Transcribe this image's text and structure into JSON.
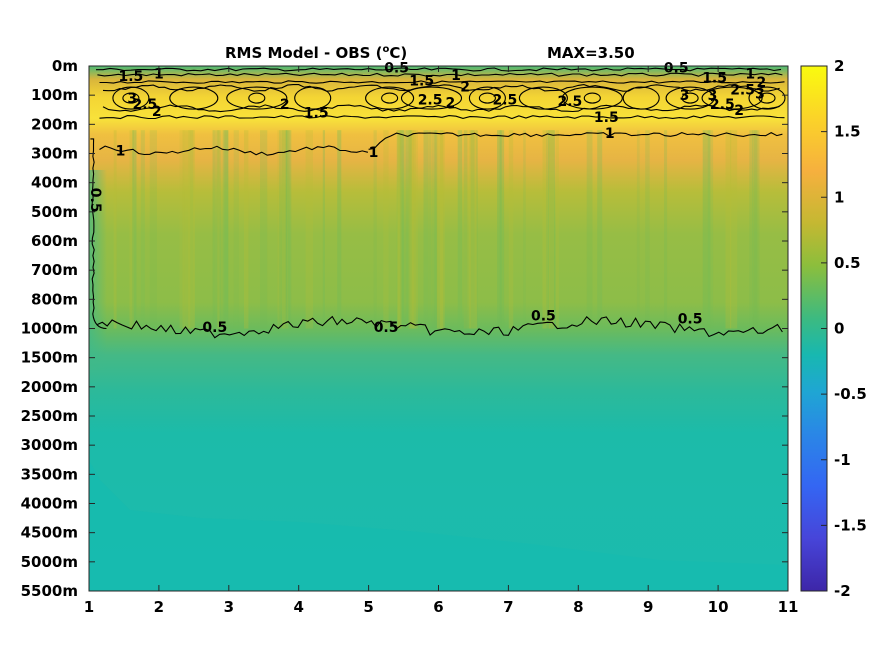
{
  "chart_data": {
    "type": "heatmap",
    "title": "RMS Model - OBS (",
    "title_degree": "o",
    "title_unit": "C)",
    "max_annotation": "MAX=3.50",
    "xlabel": "",
    "ylabel": "",
    "x_ticks": [
      "1",
      "2",
      "3",
      "4",
      "5",
      "6",
      "7",
      "8",
      "9",
      "10",
      "11"
    ],
    "y_ticks": [
      "0m",
      "100m",
      "200m",
      "300m",
      "400m",
      "500m",
      "600m",
      "700m",
      "800m",
      "1000m",
      "1500m",
      "2000m",
      "2500m",
      "3000m",
      "3500m",
      "4000m",
      "4500m",
      "5000m",
      "5500m"
    ],
    "xlim": [
      1,
      11
    ],
    "colorbar": {
      "range": [
        -2,
        2
      ],
      "ticks": [
        "2",
        "1.5",
        "1",
        "0.5",
        "0",
        "-0.5",
        "-1",
        "-1.5",
        "-2"
      ],
      "colormap": "parula"
    },
    "contour_levels": [
      0.5,
      1,
      1.5,
      2,
      2.5,
      3
    ],
    "contour_labels": [
      {
        "text": "1.5",
        "x": 1.6,
        "depth_index": 0.35
      },
      {
        "text": "1",
        "x": 2.0,
        "depth_index": 0.25
      },
      {
        "text": "3",
        "x": 1.62,
        "depth_index": 1.1
      },
      {
        "text": "2.5",
        "x": 1.8,
        "depth_index": 1.3
      },
      {
        "text": "2",
        "x": 1.97,
        "depth_index": 1.55
      },
      {
        "text": "2",
        "x": 3.8,
        "depth_index": 1.3
      },
      {
        "text": "1.5",
        "x": 4.25,
        "depth_index": 1.6
      },
      {
        "text": "0.5",
        "x": 5.4,
        "depth_index": 0.05
      },
      {
        "text": "1.5",
        "x": 5.76,
        "depth_index": 0.5
      },
      {
        "text": "1",
        "x": 6.25,
        "depth_index": 0.3
      },
      {
        "text": "2",
        "x": 6.38,
        "depth_index": 0.7
      },
      {
        "text": "2.5",
        "x": 5.88,
        "depth_index": 1.15
      },
      {
        "text": "2",
        "x": 6.17,
        "depth_index": 1.25
      },
      {
        "text": "2.5",
        "x": 6.95,
        "depth_index": 1.15
      },
      {
        "text": "2.5",
        "x": 7.88,
        "depth_index": 1.2
      },
      {
        "text": "1.5",
        "x": 8.4,
        "depth_index": 1.75
      },
      {
        "text": "1",
        "x": 8.45,
        "depth_index": 2.3
      },
      {
        "text": "0.5",
        "x": 9.4,
        "depth_index": 0.05
      },
      {
        "text": "1.5",
        "x": 9.95,
        "depth_index": 0.4
      },
      {
        "text": "1",
        "x": 10.46,
        "depth_index": 0.25
      },
      {
        "text": "2",
        "x": 10.62,
        "depth_index": 0.55
      },
      {
        "text": "3",
        "x": 9.52,
        "depth_index": 1.0
      },
      {
        "text": "3",
        "x": 9.92,
        "depth_index": 1.0
      },
      {
        "text": "2.5",
        "x": 10.35,
        "depth_index": 0.8
      },
      {
        "text": "2.5",
        "x": 10.06,
        "depth_index": 1.3
      },
      {
        "text": "3",
        "x": 10.6,
        "depth_index": 0.95
      },
      {
        "text": "2",
        "x": 10.3,
        "depth_index": 1.5
      },
      {
        "text": "1",
        "x": 1.45,
        "depth_index": 2.9
      },
      {
        "text": "1",
        "x": 5.07,
        "depth_index": 2.95
      },
      {
        "text": "0.5",
        "x": 1.1,
        "depth_index": 4.6
      },
      {
        "text": "0.5",
        "x": 2.8,
        "depth_index": 8.95
      },
      {
        "text": "0.5",
        "x": 5.25,
        "depth_index": 8.95
      },
      {
        "text": "0.5",
        "x": 7.5,
        "depth_index": 8.55
      },
      {
        "text": "0.5",
        "x": 9.6,
        "depth_index": 8.65
      }
    ]
  }
}
